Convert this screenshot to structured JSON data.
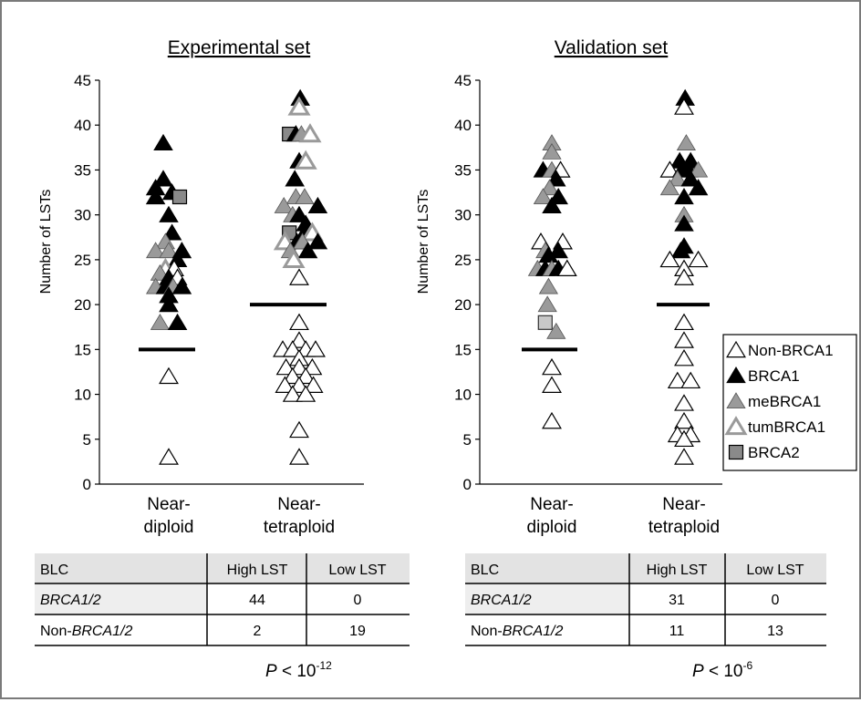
{
  "colors": {
    "black": "#000000",
    "gray_fill": "#9a9a9a",
    "gray_outline": "#9a9a9a",
    "brca2_fill": "#8a8a8a",
    "light_square": "#c8c8c8",
    "table_header_bg": "#e3e3e3",
    "table_row_bg": "#eeeeee",
    "frame": "#7a7a7a"
  },
  "chart_data": [
    {
      "type": "scatter",
      "title": "Experimental set",
      "ylabel": "Number of LSTs",
      "ylim": [
        0,
        45
      ],
      "yticks": [
        0,
        5,
        10,
        15,
        20,
        25,
        30,
        35,
        40,
        45
      ],
      "categories": [
        {
          "line1": "Near-",
          "line2": "diploid"
        },
        {
          "line1": "Near-",
          "line2": "tetraploid"
        }
      ],
      "threshold_lines": [
        15,
        20
      ],
      "points": [
        {
          "cat": 0,
          "dx": -0.5,
          "y": 38,
          "type": "BRCA1"
        },
        {
          "cat": 0,
          "dx": -0.5,
          "y": 34,
          "type": "BRCA1"
        },
        {
          "cat": 0,
          "dx": -1.2,
          "y": 33,
          "type": "BRCA1"
        },
        {
          "cat": 0,
          "dx": 0.3,
          "y": 32.5,
          "type": "BRCA1"
        },
        {
          "cat": 0,
          "dx": 1.0,
          "y": 32,
          "type": "BRCA2"
        },
        {
          "cat": 0,
          "dx": -1.2,
          "y": 32,
          "type": "BRCA1"
        },
        {
          "cat": 0,
          "dx": 0,
          "y": 30,
          "type": "BRCA1"
        },
        {
          "cat": 0,
          "dx": 0.3,
          "y": 28,
          "type": "BRCA1"
        },
        {
          "cat": 0,
          "dx": -0.3,
          "y": 27,
          "type": "meBRCA1"
        },
        {
          "cat": 0,
          "dx": -1.2,
          "y": 26,
          "type": "meBRCA1"
        },
        {
          "cat": 0,
          "dx": 0,
          "y": 26,
          "type": "meBRCA1"
        },
        {
          "cat": 0,
          "dx": 1.2,
          "y": 26,
          "type": "BRCA1"
        },
        {
          "cat": 0,
          "dx": 0.8,
          "y": 25,
          "type": "BRCA1"
        },
        {
          "cat": 0,
          "dx": -0.3,
          "y": 24,
          "type": "tumBRCA1"
        },
        {
          "cat": 0,
          "dx": 0.5,
          "y": 24,
          "type": "NonBRCA1"
        },
        {
          "cat": 0,
          "dx": -0.8,
          "y": 23.5,
          "type": "meBRCA1"
        },
        {
          "cat": 0,
          "dx": 0,
          "y": 23,
          "type": "BRCA1"
        },
        {
          "cat": 0,
          "dx": 0.8,
          "y": 23,
          "type": "NonBRCA1"
        },
        {
          "cat": 0,
          "dx": -1.2,
          "y": 22,
          "type": "meBRCA1"
        },
        {
          "cat": 0,
          "dx": -0.3,
          "y": 22,
          "type": "BRCA1"
        },
        {
          "cat": 0,
          "dx": 0.4,
          "y": 22,
          "type": "meBRCA1"
        },
        {
          "cat": 0,
          "dx": 1.2,
          "y": 22,
          "type": "BRCA1"
        },
        {
          "cat": 0,
          "dx": 0,
          "y": 21,
          "type": "BRCA1"
        },
        {
          "cat": 0,
          "dx": 0,
          "y": 20,
          "type": "BRCA1"
        },
        {
          "cat": 0,
          "dx": -0.8,
          "y": 18,
          "type": "meBRCA1"
        },
        {
          "cat": 0,
          "dx": 0.8,
          "y": 18,
          "type": "BRCA1"
        },
        {
          "cat": 0,
          "dx": 0,
          "y": 12,
          "type": "NonBRCA1"
        },
        {
          "cat": 0,
          "dx": 0,
          "y": 3,
          "type": "NonBRCA1"
        },
        {
          "cat": 1,
          "dx": 0.1,
          "y": 43,
          "type": "BRCA1"
        },
        {
          "cat": 1,
          "dx": 0,
          "y": 42,
          "type": "tumBRCA1"
        },
        {
          "cat": 1,
          "dx": -0.9,
          "y": 39,
          "type": "BRCA2"
        },
        {
          "cat": 1,
          "dx": -0.3,
          "y": 39,
          "type": "BRCA1"
        },
        {
          "cat": 1,
          "dx": 0.2,
          "y": 39,
          "type": "meBRCA1"
        },
        {
          "cat": 1,
          "dx": 1.0,
          "y": 39,
          "type": "tumBRCA1"
        },
        {
          "cat": 1,
          "dx": 0,
          "y": 36,
          "type": "BRCA1"
        },
        {
          "cat": 1,
          "dx": 0.6,
          "y": 36,
          "type": "tumBRCA1"
        },
        {
          "cat": 1,
          "dx": -0.4,
          "y": 34,
          "type": "BRCA1"
        },
        {
          "cat": 1,
          "dx": -0.3,
          "y": 32,
          "type": "meBRCA1"
        },
        {
          "cat": 1,
          "dx": 0.5,
          "y": 32,
          "type": "meBRCA1"
        },
        {
          "cat": 1,
          "dx": -1.4,
          "y": 31,
          "type": "meBRCA1"
        },
        {
          "cat": 1,
          "dx": 1.7,
          "y": 31,
          "type": "BRCA1"
        },
        {
          "cat": 1,
          "dx": -0.6,
          "y": 30,
          "type": "meBRCA1"
        },
        {
          "cat": 1,
          "dx": 0,
          "y": 30,
          "type": "BRCA1"
        },
        {
          "cat": 1,
          "dx": 0.6,
          "y": 29,
          "type": "BRCA1"
        },
        {
          "cat": 1,
          "dx": -0.9,
          "y": 28,
          "type": "BRCA2"
        },
        {
          "cat": 1,
          "dx": 0.5,
          "y": 28,
          "type": "BRCA1"
        },
        {
          "cat": 1,
          "dx": 1.2,
          "y": 28,
          "type": "tumBRCA1"
        },
        {
          "cat": 1,
          "dx": -1.3,
          "y": 27,
          "type": "tumBRCA1"
        },
        {
          "cat": 1,
          "dx": -0.2,
          "y": 27,
          "type": "BRCA1"
        },
        {
          "cat": 1,
          "dx": 0.3,
          "y": 27,
          "type": "meBRCA1"
        },
        {
          "cat": 1,
          "dx": 1.7,
          "y": 27,
          "type": "BRCA1"
        },
        {
          "cat": 1,
          "dx": -0.8,
          "y": 26,
          "type": "meBRCA1"
        },
        {
          "cat": 1,
          "dx": 0.8,
          "y": 26,
          "type": "BRCA1"
        },
        {
          "cat": 1,
          "dx": -0.5,
          "y": 25,
          "type": "tumBRCA1"
        },
        {
          "cat": 1,
          "dx": 0,
          "y": 23,
          "type": "NonBRCA1"
        },
        {
          "cat": 1,
          "dx": 0,
          "y": 18,
          "type": "NonBRCA1"
        },
        {
          "cat": 1,
          "dx": 0,
          "y": 16,
          "type": "NonBRCA1"
        },
        {
          "cat": 1,
          "dx": -1.5,
          "y": 15,
          "type": "NonBRCA1"
        },
        {
          "cat": 1,
          "dx": -0.6,
          "y": 15,
          "type": "NonBRCA1"
        },
        {
          "cat": 1,
          "dx": 0.6,
          "y": 15,
          "type": "NonBRCA1"
        },
        {
          "cat": 1,
          "dx": 1.5,
          "y": 15,
          "type": "NonBRCA1"
        },
        {
          "cat": 1,
          "dx": 0,
          "y": 14,
          "type": "NonBRCA1"
        },
        {
          "cat": 1,
          "dx": -1.2,
          "y": 13,
          "type": "NonBRCA1"
        },
        {
          "cat": 1,
          "dx": 0,
          "y": 13,
          "type": "NonBRCA1"
        },
        {
          "cat": 1,
          "dx": 1.2,
          "y": 13,
          "type": "NonBRCA1"
        },
        {
          "cat": 1,
          "dx": -0.6,
          "y": 12,
          "type": "NonBRCA1"
        },
        {
          "cat": 1,
          "dx": 0.6,
          "y": 12,
          "type": "NonBRCA1"
        },
        {
          "cat": 1,
          "dx": -1.3,
          "y": 11,
          "type": "NonBRCA1"
        },
        {
          "cat": 1,
          "dx": 0,
          "y": 11,
          "type": "NonBRCA1"
        },
        {
          "cat": 1,
          "dx": 1.3,
          "y": 11,
          "type": "NonBRCA1"
        },
        {
          "cat": 1,
          "dx": -0.6,
          "y": 10,
          "type": "NonBRCA1"
        },
        {
          "cat": 1,
          "dx": 0.6,
          "y": 10,
          "type": "NonBRCA1"
        },
        {
          "cat": 1,
          "dx": 0,
          "y": 6,
          "type": "NonBRCA1"
        },
        {
          "cat": 1,
          "dx": 0,
          "y": 3,
          "type": "NonBRCA1"
        }
      ]
    },
    {
      "type": "scatter",
      "title": "Validation set",
      "ylabel": "Number of LSTs",
      "ylim": [
        0,
        45
      ],
      "yticks": [
        0,
        5,
        10,
        15,
        20,
        25,
        30,
        35,
        40,
        45
      ],
      "categories": [
        {
          "line1": "Near-",
          "line2": "diploid"
        },
        {
          "line1": "Near-",
          "line2": "tetraploid"
        }
      ],
      "threshold_lines": [
        15,
        20
      ],
      "points": [
        {
          "cat": 0,
          "dx": 0,
          "y": 38,
          "type": "meBRCA1"
        },
        {
          "cat": 0,
          "dx": 0,
          "y": 37,
          "type": "meBRCA1"
        },
        {
          "cat": 0,
          "dx": -0.8,
          "y": 35,
          "type": "BRCA1"
        },
        {
          "cat": 0,
          "dx": 0,
          "y": 35,
          "type": "meBRCA1"
        },
        {
          "cat": 0,
          "dx": 0.8,
          "y": 35,
          "type": "NonBRCA1"
        },
        {
          "cat": 0,
          "dx": 0.4,
          "y": 34,
          "type": "BRCA1"
        },
        {
          "cat": 0,
          "dx": -0.2,
          "y": 33,
          "type": "meBRCA1"
        },
        {
          "cat": 0,
          "dx": -0.8,
          "y": 32,
          "type": "meBRCA1"
        },
        {
          "cat": 0,
          "dx": 0.6,
          "y": 32,
          "type": "BRCA1"
        },
        {
          "cat": 0,
          "dx": 0,
          "y": 31,
          "type": "BRCA1"
        },
        {
          "cat": 0,
          "dx": -1.0,
          "y": 27,
          "type": "NonBRCA1"
        },
        {
          "cat": 0,
          "dx": 1.0,
          "y": 27,
          "type": "NonBRCA1"
        },
        {
          "cat": 0,
          "dx": -0.6,
          "y": 26,
          "type": "meBRCA1"
        },
        {
          "cat": 0,
          "dx": 0.6,
          "y": 26,
          "type": "BRCA1"
        },
        {
          "cat": 0,
          "dx": -0.3,
          "y": 25.5,
          "type": "BRCA1"
        },
        {
          "cat": 0,
          "dx": -1.3,
          "y": 24,
          "type": "meBRCA1"
        },
        {
          "cat": 0,
          "dx": -0.6,
          "y": 24,
          "type": "BRCA1"
        },
        {
          "cat": 0,
          "dx": 0,
          "y": 24,
          "type": "meBRCA1"
        },
        {
          "cat": 0,
          "dx": 0.6,
          "y": 24,
          "type": "BRCA1"
        },
        {
          "cat": 0,
          "dx": 1.4,
          "y": 24,
          "type": "NonBRCA1"
        },
        {
          "cat": 0,
          "dx": -0.3,
          "y": 22,
          "type": "meBRCA1"
        },
        {
          "cat": 0,
          "dx": -0.4,
          "y": 20,
          "type": "meBRCA1"
        },
        {
          "cat": 0,
          "dx": -0.6,
          "y": 18,
          "type": "BRCA2L"
        },
        {
          "cat": 0,
          "dx": 0.4,
          "y": 17,
          "type": "meBRCA1"
        },
        {
          "cat": 0,
          "dx": 0,
          "y": 13,
          "type": "NonBRCA1"
        },
        {
          "cat": 0,
          "dx": 0,
          "y": 11,
          "type": "NonBRCA1"
        },
        {
          "cat": 0,
          "dx": 0,
          "y": 7,
          "type": "NonBRCA1"
        },
        {
          "cat": 1,
          "dx": 0.1,
          "y": 43,
          "type": "BRCA1"
        },
        {
          "cat": 1,
          "dx": 0,
          "y": 42,
          "type": "NonBRCA1"
        },
        {
          "cat": 1,
          "dx": 0.2,
          "y": 38,
          "type": "meBRCA1"
        },
        {
          "cat": 1,
          "dx": -0.4,
          "y": 36,
          "type": "BRCA1"
        },
        {
          "cat": 1,
          "dx": 0.6,
          "y": 36,
          "type": "BRCA1"
        },
        {
          "cat": 1,
          "dx": -1.3,
          "y": 35,
          "type": "NonBRCA1"
        },
        {
          "cat": 1,
          "dx": -0.2,
          "y": 35,
          "type": "BRCA1"
        },
        {
          "cat": 1,
          "dx": 0.4,
          "y": 35,
          "type": "BRCA1"
        },
        {
          "cat": 1,
          "dx": 1.3,
          "y": 35,
          "type": "meBRCA1"
        },
        {
          "cat": 1,
          "dx": -0.6,
          "y": 34,
          "type": "meBRCA1"
        },
        {
          "cat": 1,
          "dx": 0.6,
          "y": 34,
          "type": "BRCA1"
        },
        {
          "cat": 1,
          "dx": -1.3,
          "y": 33,
          "type": "meBRCA1"
        },
        {
          "cat": 1,
          "dx": 1.3,
          "y": 33,
          "type": "BRCA1"
        },
        {
          "cat": 1,
          "dx": 0,
          "y": 32,
          "type": "BRCA1"
        },
        {
          "cat": 1,
          "dx": 0,
          "y": 30,
          "type": "meBRCA1"
        },
        {
          "cat": 1,
          "dx": 0,
          "y": 29,
          "type": "BRCA1"
        },
        {
          "cat": 1,
          "dx": 0,
          "y": 26.5,
          "type": "BRCA1"
        },
        {
          "cat": 1,
          "dx": -0.3,
          "y": 26,
          "type": "BRCA1"
        },
        {
          "cat": 1,
          "dx": -1.3,
          "y": 25,
          "type": "NonBRCA1"
        },
        {
          "cat": 1,
          "dx": 1.3,
          "y": 25,
          "type": "NonBRCA1"
        },
        {
          "cat": 1,
          "dx": 0,
          "y": 24,
          "type": "NonBRCA1"
        },
        {
          "cat": 1,
          "dx": 0,
          "y": 23,
          "type": "NonBRCA1"
        },
        {
          "cat": 1,
          "dx": 0,
          "y": 18,
          "type": "NonBRCA1"
        },
        {
          "cat": 1,
          "dx": 0,
          "y": 16,
          "type": "NonBRCA1"
        },
        {
          "cat": 1,
          "dx": 0,
          "y": 14,
          "type": "NonBRCA1"
        },
        {
          "cat": 1,
          "dx": -0.6,
          "y": 11.5,
          "type": "NonBRCA1"
        },
        {
          "cat": 1,
          "dx": 0.6,
          "y": 11.5,
          "type": "NonBRCA1"
        },
        {
          "cat": 1,
          "dx": 0,
          "y": 9,
          "type": "NonBRCA1"
        },
        {
          "cat": 1,
          "dx": 0,
          "y": 7,
          "type": "NonBRCA1"
        },
        {
          "cat": 1,
          "dx": -0.6,
          "y": 5.5,
          "type": "NonBRCA1"
        },
        {
          "cat": 1,
          "dx": 0.6,
          "y": 5.5,
          "type": "NonBRCA1"
        },
        {
          "cat": 1,
          "dx": 0,
          "y": 5,
          "type": "NonBRCA1"
        },
        {
          "cat": 1,
          "dx": 0,
          "y": 3,
          "type": "NonBRCA1"
        }
      ]
    }
  ],
  "legend": {
    "placement": "right",
    "items": [
      {
        "label": "Non-BRCA1",
        "type": "NonBRCA1"
      },
      {
        "label": "BRCA1",
        "type": "BRCA1"
      },
      {
        "label": "meBRCA1",
        "type": "meBRCA1"
      },
      {
        "label": "tumBRCA1",
        "type": "tumBRCA1"
      },
      {
        "label": "BRCA2",
        "type": "BRCA2"
      }
    ]
  },
  "tables": [
    {
      "headers": [
        "BLC",
        "High LST",
        "Low LST"
      ],
      "rows": [
        {
          "label_prefix": "",
          "label_italic": "BRCA1/2",
          "values": [
            "44",
            "0"
          ]
        },
        {
          "label_prefix": "Non-",
          "label_italic": "BRCA1/2",
          "values": [
            "2",
            "19"
          ]
        }
      ],
      "pvalue": {
        "p": "P",
        "rel": "< 10",
        "exp": "-12"
      }
    },
    {
      "headers": [
        "BLC",
        "High LST",
        "Low LST"
      ],
      "rows": [
        {
          "label_prefix": "",
          "label_italic": "BRCA1/2",
          "values": [
            "31",
            "0"
          ]
        },
        {
          "label_prefix": "Non-",
          "label_italic": "BRCA1/2",
          "values": [
            "11",
            "13"
          ]
        }
      ],
      "pvalue": {
        "p": "P",
        "rel": "< 10",
        "exp": "-6"
      }
    }
  ]
}
